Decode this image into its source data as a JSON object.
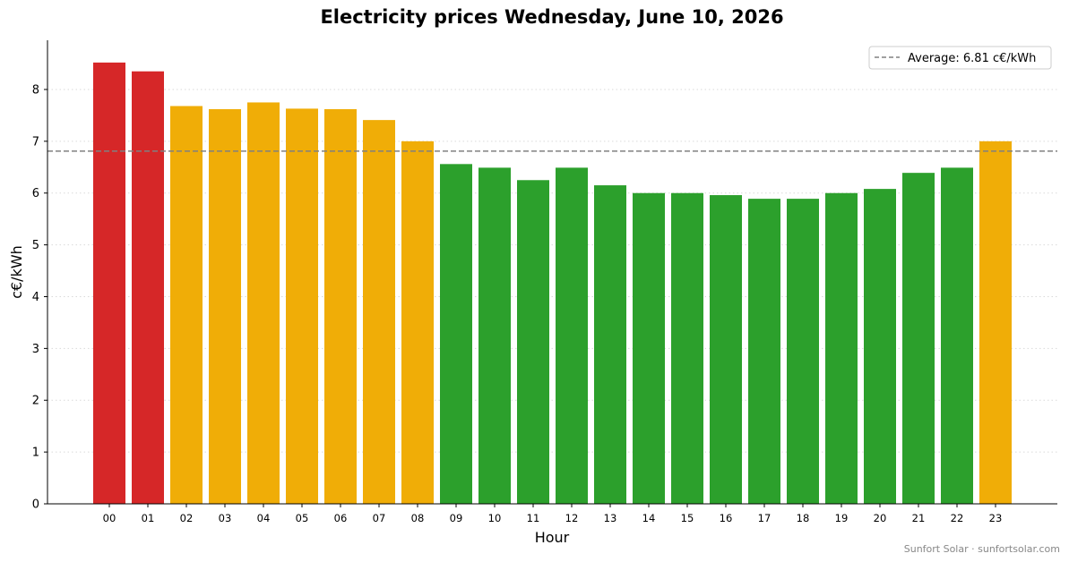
{
  "chart_data": {
    "type": "bar",
    "title": "Electricity prices Wednesday, June 10, 2026",
    "xlabel": "Hour",
    "ylabel": "c€/kWh",
    "categories": [
      "00",
      "01",
      "02",
      "03",
      "04",
      "05",
      "06",
      "07",
      "08",
      "09",
      "10",
      "11",
      "12",
      "13",
      "14",
      "15",
      "16",
      "17",
      "18",
      "19",
      "20",
      "21",
      "22",
      "23"
    ],
    "values": [
      8.52,
      8.35,
      7.68,
      7.62,
      7.75,
      7.63,
      7.62,
      7.41,
      7.0,
      6.56,
      6.49,
      6.25,
      6.49,
      6.15,
      6.0,
      6.0,
      5.96,
      5.89,
      5.89,
      6.0,
      6.08,
      6.39,
      6.49,
      7.0
    ],
    "bar_colors": [
      "#d62728",
      "#d62728",
      "#f0ad07",
      "#f0ad07",
      "#f0ad07",
      "#f0ad07",
      "#f0ad07",
      "#f0ad07",
      "#f0ad07",
      "#2ca02c",
      "#2ca02c",
      "#2ca02c",
      "#2ca02c",
      "#2ca02c",
      "#2ca02c",
      "#2ca02c",
      "#2ca02c",
      "#2ca02c",
      "#2ca02c",
      "#2ca02c",
      "#2ca02c",
      "#2ca02c",
      "#2ca02c",
      "#f0ad07"
    ],
    "yticks": [
      0,
      1,
      2,
      3,
      4,
      5,
      6,
      7,
      8
    ],
    "ylim": [
      0,
      8.95
    ],
    "grid": "horizontal dotted",
    "average": {
      "value": 6.81,
      "label": "Average: 6.81 c€/kWh",
      "color": "#808080",
      "style": "dashed"
    },
    "legend": {
      "position": "top-right"
    }
  },
  "footer": "Sunfort Solar · sunfortsolar.com"
}
